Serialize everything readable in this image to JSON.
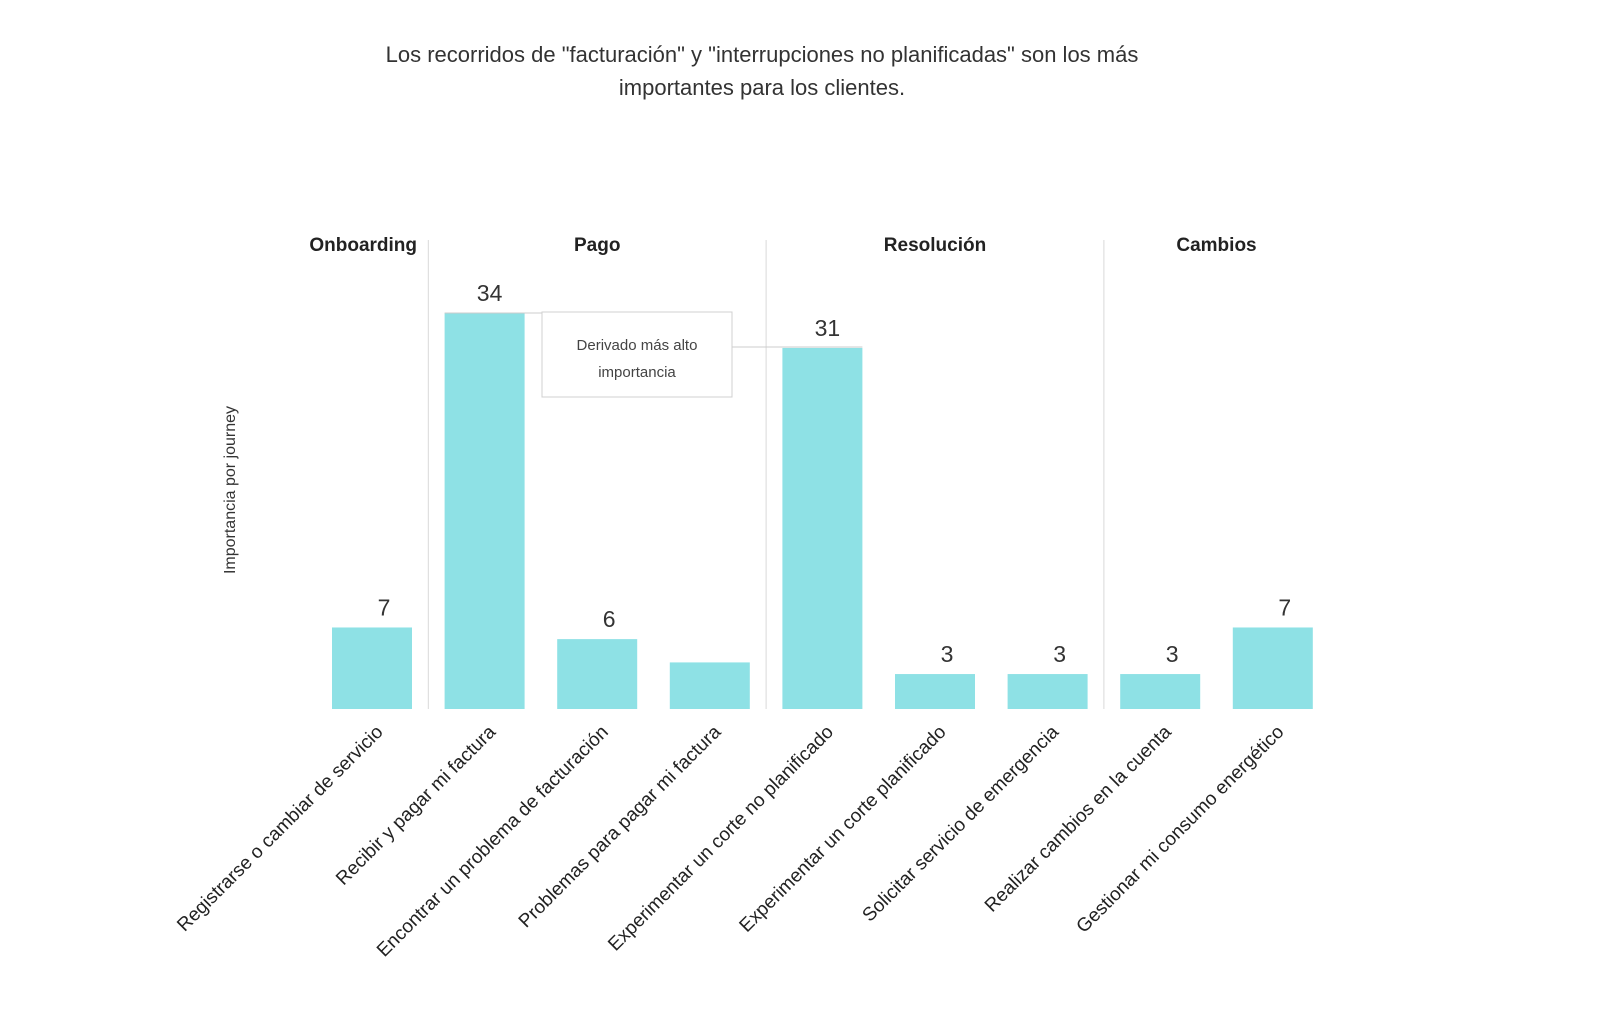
{
  "title_lines": [
    "Los recorridos de \"facturación\" y \"interrupciones no planificadas\" son los más",
    "importantes para los clientes."
  ],
  "colors": {
    "bar": "#8ee1e5",
    "separator": "#d9d9d9"
  },
  "tooltip": {
    "lines": [
      "Derivado más alto",
      "importancia"
    ]
  },
  "chart_data": {
    "type": "bar",
    "title": "Los recorridos de \"facturación\" y \"interrupciones no planificadas\" son los más importantes para los clientes.",
    "ylabel": "Importancia por journey",
    "xlabel": "",
    "ylim": [
      0,
      34
    ],
    "grid": false,
    "groups": [
      {
        "name": "Onboarding",
        "categories": [
          "Registrarse o cambiar de servicio"
        ]
      },
      {
        "name": "Pago",
        "categories": [
          "Recibir y pagar mi factura",
          "Encontrar un problema de facturación",
          "Problemas para pagar mi factura"
        ]
      },
      {
        "name": "Resolución",
        "categories": [
          "Experimentar un corte no planificado",
          "Experimentar un corte planificado",
          "Solicitar servicio de emergencia"
        ]
      },
      {
        "name": "Cambios",
        "categories": [
          "Realizar cambios en la cuenta",
          "Gestionar mi consumo energético"
        ]
      }
    ],
    "categories": [
      "Registrarse o cambiar de servicio",
      "Recibir y pagar mi factura",
      "Encontrar un problema de facturación",
      "Problemas para pagar mi factura",
      "Experimentar un corte no planificado",
      "Experimentar un corte planificado",
      "Solicitar servicio de emergencia",
      "Realizar cambios en la cuenta",
      "Gestionar mi consumo energético"
    ],
    "values": [
      7,
      34,
      6,
      4,
      31,
      3,
      3,
      3,
      7
    ],
    "labels": [
      "7",
      "34",
      "6",
      null,
      "31",
      "3",
      "3",
      "3",
      "7"
    ]
  }
}
